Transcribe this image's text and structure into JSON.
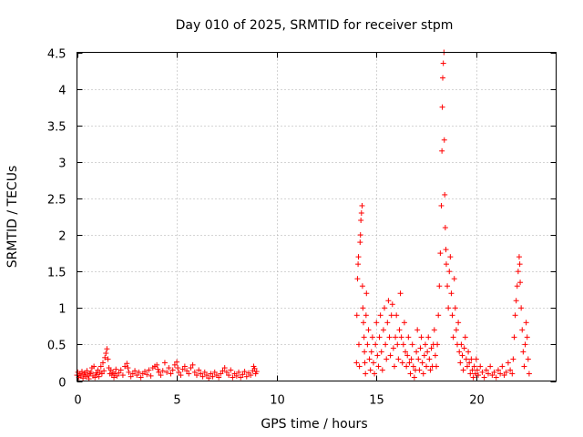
{
  "chart_data": {
    "type": "scatter",
    "title": "Day 010 of 2025, SRMTID for receiver stpm",
    "xlabel": "GPS time / hours",
    "ylabel": "SRMTID / TECUs",
    "xlim": [
      0,
      24
    ],
    "ylim": [
      0,
      4.5
    ],
    "xticks": [
      0,
      5,
      10,
      15,
      20
    ],
    "yticks": [
      0,
      0.5,
      1,
      1.5,
      2,
      2.5,
      3,
      3.5,
      4,
      4.5
    ],
    "xtick_labels": [
      "0",
      "5",
      "10",
      "15",
      "20"
    ],
    "ytick_labels": [
      "0",
      "0.5",
      "1",
      "1.5",
      "2",
      "2.5",
      "3",
      "3.5",
      "4",
      "4.5"
    ],
    "grid": true,
    "marker": "+",
    "color": "#ff0000",
    "series": [
      {
        "points": [
          [
            0.0,
            0.08
          ],
          [
            0.05,
            0.12
          ],
          [
            0.1,
            0.05
          ],
          [
            0.15,
            0.1
          ],
          [
            0.2,
            0.07
          ],
          [
            0.25,
            0.13
          ],
          [
            0.3,
            0.04
          ],
          [
            0.35,
            0.09
          ],
          [
            0.4,
            0.11
          ],
          [
            0.45,
            0.06
          ],
          [
            0.5,
            0.14
          ],
          [
            0.55,
            0.08
          ],
          [
            0.6,
            0.03
          ],
          [
            0.65,
            0.1
          ],
          [
            0.7,
            0.12
          ],
          [
            0.75,
            0.18
          ],
          [
            0.8,
            0.07
          ],
          [
            0.85,
            0.2
          ],
          [
            0.9,
            0.05
          ],
          [
            0.95,
            0.11
          ],
          [
            1.0,
            0.09
          ],
          [
            1.05,
            0.15
          ],
          [
            1.1,
            0.06
          ],
          [
            1.15,
            0.12
          ],
          [
            1.2,
            0.2
          ],
          [
            1.25,
            0.1
          ],
          [
            1.3,
            0.25
          ],
          [
            1.35,
            0.14
          ],
          [
            1.4,
            0.32
          ],
          [
            1.45,
            0.38
          ],
          [
            1.5,
            0.44
          ],
          [
            1.55,
            0.3
          ],
          [
            1.6,
            0.18
          ],
          [
            1.65,
            0.1
          ],
          [
            1.7,
            0.15
          ],
          [
            1.75,
            0.08
          ],
          [
            1.8,
            0.12
          ],
          [
            1.85,
            0.05
          ],
          [
            1.9,
            0.1
          ],
          [
            1.95,
            0.16
          ],
          [
            2.0,
            0.07
          ],
          [
            2.1,
            0.11
          ],
          [
            2.2,
            0.15
          ],
          [
            2.3,
            0.08
          ],
          [
            2.4,
            0.2
          ],
          [
            2.5,
            0.24
          ],
          [
            2.55,
            0.18
          ],
          [
            2.6,
            0.12
          ],
          [
            2.7,
            0.06
          ],
          [
            2.8,
            0.1
          ],
          [
            2.9,
            0.14
          ],
          [
            3.0,
            0.08
          ],
          [
            3.1,
            0.12
          ],
          [
            3.2,
            0.05
          ],
          [
            3.3,
            0.1
          ],
          [
            3.4,
            0.13
          ],
          [
            3.5,
            0.09
          ],
          [
            3.6,
            0.15
          ],
          [
            3.7,
            0.07
          ],
          [
            3.8,
            0.18
          ],
          [
            3.9,
            0.2
          ],
          [
            4.0,
            0.22
          ],
          [
            4.05,
            0.16
          ],
          [
            4.1,
            0.12
          ],
          [
            4.2,
            0.08
          ],
          [
            4.3,
            0.14
          ],
          [
            4.4,
            0.25
          ],
          [
            4.5,
            0.12
          ],
          [
            4.6,
            0.18
          ],
          [
            4.7,
            0.1
          ],
          [
            4.8,
            0.15
          ],
          [
            4.9,
            0.22
          ],
          [
            5.0,
            0.26
          ],
          [
            5.05,
            0.18
          ],
          [
            5.1,
            0.12
          ],
          [
            5.2,
            0.08
          ],
          [
            5.3,
            0.16
          ],
          [
            5.4,
            0.2
          ],
          [
            5.5,
            0.14
          ],
          [
            5.6,
            0.1
          ],
          [
            5.7,
            0.18
          ],
          [
            5.8,
            0.22
          ],
          [
            5.9,
            0.12
          ],
          [
            6.0,
            0.08
          ],
          [
            6.1,
            0.15
          ],
          [
            6.2,
            0.1
          ],
          [
            6.3,
            0.06
          ],
          [
            6.4,
            0.12
          ],
          [
            6.5,
            0.08
          ],
          [
            6.6,
            0.04
          ],
          [
            6.7,
            0.1
          ],
          [
            6.8,
            0.06
          ],
          [
            6.9,
            0.12
          ],
          [
            7.0,
            0.08
          ],
          [
            7.1,
            0.05
          ],
          [
            7.2,
            0.1
          ],
          [
            7.3,
            0.14
          ],
          [
            7.4,
            0.18
          ],
          [
            7.5,
            0.12
          ],
          [
            7.6,
            0.08
          ],
          [
            7.7,
            0.15
          ],
          [
            7.8,
            0.05
          ],
          [
            7.9,
            0.1
          ],
          [
            8.0,
            0.07
          ],
          [
            8.1,
            0.12
          ],
          [
            8.2,
            0.05
          ],
          [
            8.3,
            0.09
          ],
          [
            8.4,
            0.13
          ],
          [
            8.5,
            0.06
          ],
          [
            8.6,
            0.11
          ],
          [
            8.7,
            0.08
          ],
          [
            8.8,
            0.14
          ],
          [
            8.85,
            0.2
          ],
          [
            8.9,
            0.17
          ],
          [
            8.95,
            0.1
          ],
          [
            9.0,
            0.13
          ],
          [
            14.0,
            0.25
          ],
          [
            14.02,
            0.9
          ],
          [
            14.05,
            1.4
          ],
          [
            14.08,
            1.6
          ],
          [
            14.1,
            1.7
          ],
          [
            14.12,
            0.5
          ],
          [
            14.15,
            0.2
          ],
          [
            14.18,
            1.9
          ],
          [
            14.2,
            2.0
          ],
          [
            14.22,
            2.2
          ],
          [
            14.25,
            2.3
          ],
          [
            14.28,
            2.4
          ],
          [
            14.3,
            1.3
          ],
          [
            14.32,
            1.0
          ],
          [
            14.35,
            0.8
          ],
          [
            14.38,
            0.6
          ],
          [
            14.4,
            0.4
          ],
          [
            14.42,
            0.25
          ],
          [
            14.45,
            0.1
          ],
          [
            14.48,
            0.9
          ],
          [
            14.5,
            1.2
          ],
          [
            14.55,
            0.5
          ],
          [
            14.6,
            0.7
          ],
          [
            14.65,
            0.3
          ],
          [
            14.7,
            0.15
          ],
          [
            14.75,
            0.4
          ],
          [
            14.8,
            0.6
          ],
          [
            14.85,
            0.25
          ],
          [
            14.9,
            0.1
          ],
          [
            14.95,
            0.5
          ],
          [
            15.0,
            0.8
          ],
          [
            15.05,
            0.35
          ],
          [
            15.1,
            0.2
          ],
          [
            15.15,
            0.6
          ],
          [
            15.2,
            0.9
          ],
          [
            15.25,
            0.4
          ],
          [
            15.3,
            0.15
          ],
          [
            15.35,
            0.7
          ],
          [
            15.4,
            1.0
          ],
          [
            15.45,
            0.5
          ],
          [
            15.5,
            0.3
          ],
          [
            15.55,
            0.8
          ],
          [
            15.6,
            1.1
          ],
          [
            15.65,
            0.6
          ],
          [
            15.7,
            0.35
          ],
          [
            15.75,
            0.9
          ],
          [
            15.8,
            1.05
          ],
          [
            15.85,
            0.45
          ],
          [
            15.9,
            0.2
          ],
          [
            15.95,
            0.6
          ],
          [
            16.0,
            0.9
          ],
          [
            16.05,
            0.5
          ],
          [
            16.1,
            0.3
          ],
          [
            16.15,
            0.7
          ],
          [
            16.2,
            1.2
          ],
          [
            16.25,
            0.6
          ],
          [
            16.3,
            0.25
          ],
          [
            16.35,
            0.5
          ],
          [
            16.4,
            0.8
          ],
          [
            16.45,
            0.4
          ],
          [
            16.5,
            0.2
          ],
          [
            16.55,
            0.35
          ],
          [
            16.6,
            0.6
          ],
          [
            16.65,
            0.25
          ],
          [
            16.7,
            0.1
          ],
          [
            16.75,
            0.3
          ],
          [
            16.8,
            0.5
          ],
          [
            16.85,
            0.2
          ],
          [
            16.9,
            0.05
          ],
          [
            16.95,
            0.15
          ],
          [
            17.0,
            0.4
          ],
          [
            17.05,
            0.7
          ],
          [
            17.1,
            0.3
          ],
          [
            17.15,
            0.15
          ],
          [
            17.2,
            0.45
          ],
          [
            17.25,
            0.6
          ],
          [
            17.3,
            0.25
          ],
          [
            17.35,
            0.1
          ],
          [
            17.4,
            0.35
          ],
          [
            17.45,
            0.5
          ],
          [
            17.5,
            0.2
          ],
          [
            17.55,
            0.4
          ],
          [
            17.6,
            0.6
          ],
          [
            17.65,
            0.3
          ],
          [
            17.7,
            0.15
          ],
          [
            17.75,
            0.45
          ],
          [
            17.8,
            0.2
          ],
          [
            17.85,
            0.5
          ],
          [
            17.9,
            0.7
          ],
          [
            17.95,
            0.35
          ],
          [
            18.0,
            0.2
          ],
          [
            18.05,
            0.5
          ],
          [
            18.1,
            0.9
          ],
          [
            18.15,
            1.3
          ],
          [
            18.2,
            1.75
          ],
          [
            18.25,
            2.4
          ],
          [
            18.28,
            3.15
          ],
          [
            18.3,
            3.75
          ],
          [
            18.32,
            4.15
          ],
          [
            18.35,
            4.35
          ],
          [
            18.38,
            4.5
          ],
          [
            18.4,
            3.3
          ],
          [
            18.42,
            2.55
          ],
          [
            18.45,
            2.1
          ],
          [
            18.48,
            1.8
          ],
          [
            18.5,
            1.6
          ],
          [
            18.55,
            1.3
          ],
          [
            18.6,
            1.0
          ],
          [
            18.65,
            1.5
          ],
          [
            18.7,
            1.7
          ],
          [
            18.75,
            1.2
          ],
          [
            18.8,
            0.9
          ],
          [
            18.85,
            0.6
          ],
          [
            18.9,
            1.4
          ],
          [
            18.95,
            1.0
          ],
          [
            19.0,
            0.7
          ],
          [
            19.05,
            0.5
          ],
          [
            19.1,
            0.8
          ],
          [
            19.15,
            0.4
          ],
          [
            19.2,
            0.25
          ],
          [
            19.25,
            0.5
          ],
          [
            19.3,
            0.35
          ],
          [
            19.35,
            0.15
          ],
          [
            19.4,
            0.45
          ],
          [
            19.45,
            0.6
          ],
          [
            19.5,
            0.3
          ],
          [
            19.55,
            0.2
          ],
          [
            19.6,
            0.4
          ],
          [
            19.65,
            0.25
          ],
          [
            19.7,
            0.1
          ],
          [
            19.75,
            0.3
          ],
          [
            19.8,
            0.15
          ],
          [
            19.85,
            0.05
          ],
          [
            19.9,
            0.2
          ],
          [
            19.95,
            0.1
          ],
          [
            20.0,
            0.3
          ],
          [
            20.05,
            0.15
          ],
          [
            20.1,
            0.08
          ],
          [
            20.2,
            0.2
          ],
          [
            20.3,
            0.12
          ],
          [
            20.4,
            0.05
          ],
          [
            20.5,
            0.15
          ],
          [
            20.6,
            0.1
          ],
          [
            20.7,
            0.2
          ],
          [
            20.8,
            0.08
          ],
          [
            20.9,
            0.12
          ],
          [
            21.0,
            0.05
          ],
          [
            21.1,
            0.15
          ],
          [
            21.2,
            0.1
          ],
          [
            21.3,
            0.2
          ],
          [
            21.4,
            0.08
          ],
          [
            21.5,
            0.12
          ],
          [
            21.6,
            0.25
          ],
          [
            21.7,
            0.15
          ],
          [
            21.8,
            0.1
          ],
          [
            21.85,
            0.3
          ],
          [
            21.9,
            0.6
          ],
          [
            21.95,
            0.9
          ],
          [
            22.0,
            1.1
          ],
          [
            22.05,
            1.3
          ],
          [
            22.1,
            1.5
          ],
          [
            22.15,
            1.7
          ],
          [
            22.18,
            1.6
          ],
          [
            22.2,
            1.35
          ],
          [
            22.25,
            1.0
          ],
          [
            22.3,
            0.7
          ],
          [
            22.35,
            0.4
          ],
          [
            22.4,
            0.2
          ],
          [
            22.45,
            0.5
          ],
          [
            22.5,
            0.8
          ],
          [
            22.55,
            0.6
          ],
          [
            22.6,
            0.3
          ],
          [
            22.65,
            0.1
          ]
        ]
      }
    ]
  }
}
